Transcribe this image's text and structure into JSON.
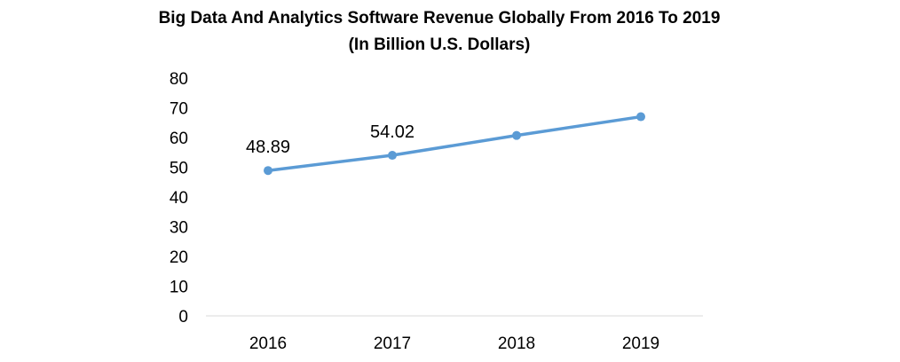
{
  "chart_data": {
    "type": "line",
    "title": "Big Data And Analytics Software Revenue Globally From 2016 To 2019",
    "subtitle": "(In Billion U.S. Dollars)",
    "categories": [
      "2016",
      "2017",
      "2018",
      "2019"
    ],
    "series": [
      {
        "values": [
          48.89,
          54.02,
          60.7,
          67.0
        ],
        "color": "#5b9bd5"
      }
    ],
    "data_labels": [
      "48.89",
      "54.02",
      null,
      null
    ],
    "ylim": [
      0,
      80
    ],
    "yticks": [
      0,
      10,
      20,
      30,
      40,
      50,
      60,
      70,
      80
    ],
    "grid": false,
    "legend": "none"
  }
}
